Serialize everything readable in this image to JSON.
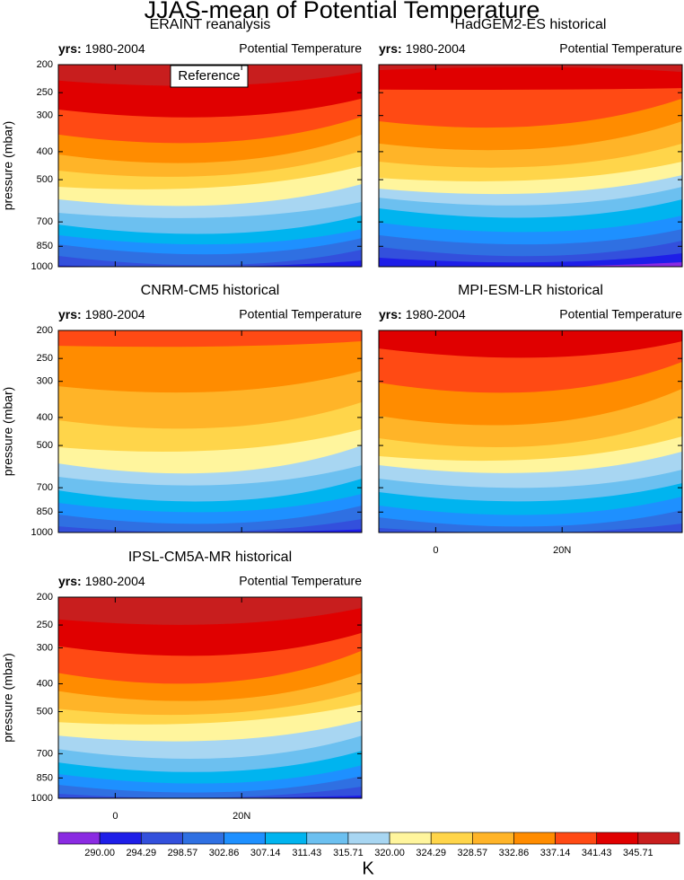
{
  "title": "JJAS-mean of Potential Temperature",
  "colorbar": {
    "label": "K",
    "levels": [
      {
        "value": 290,
        "label": "290.00"
      },
      294.29,
      298.57,
      302.86,
      307.14,
      311.43,
      315.71,
      {
        "value": 320,
        "label": "320.00"
      },
      324.29,
      328.57,
      332.86,
      337.14,
      341.43,
      345.71
    ],
    "colors": [
      "#8a2be2",
      "#1e1ee8",
      "#3350dc",
      "#2f70e2",
      "#1e90ff",
      "#00b4ef",
      "#6cc0f0",
      "#a8d6f2",
      "#fff59d",
      "#ffd54a",
      "#ffb428",
      "#ff8c00",
      "#ff4a14",
      "#e00000",
      "#c81e1e"
    ]
  },
  "chart_data": [
    {
      "type": "contour",
      "title": "ERAINT reanalysis",
      "left_string_bold": "yrs:",
      "left_string": "1980-2004",
      "right_string": "Potential Temperature",
      "annotation": "Reference",
      "ylabel": "pressure (mbar)",
      "log_y": true,
      "ytick_labels": true,
      "xtick_labels": false,
      "x": [
        -9,
        17,
        39
      ],
      "xlim": [
        -9,
        39
      ],
      "ylim": [
        1000,
        200
      ],
      "xticks": [
        0,
        {
          "value": 20,
          "label": "20N"
        }
      ],
      "yticks": [
        200,
        250,
        300,
        400,
        500,
        700,
        850,
        1000
      ],
      "contours": [
        {
          "level": 345.71,
          "values": [
            227,
            236,
            212
          ]
        },
        {
          "level": 341.43,
          "values": [
            286,
            303,
            262
          ]
        },
        {
          "level": 337.14,
          "values": [
            349,
            370,
            303
          ]
        },
        {
          "level": 332.86,
          "values": [
            409,
            433,
            349
          ]
        },
        {
          "level": 328.57,
          "values": [
            465,
            482,
            397
          ]
        },
        {
          "level": 324.29,
          "values": [
            529,
            529,
            449
          ]
        },
        {
          "level": 320,
          "values": [
            585,
            611,
            518
          ]
        },
        {
          "level": 315.71,
          "values": [
            651,
            675,
            597
          ]
        },
        {
          "level": 311.43,
          "values": [
            715,
            768,
            665
          ]
        },
        {
          "level": 307.14,
          "values": [
            778,
            836,
            741
          ]
        },
        {
          "level": 302.86,
          "values": [
            836,
            905,
            796
          ]
        },
        {
          "level": 298.57,
          "values": [
            918,
            986,
            873
          ]
        },
        {
          "level": 294.29,
          "values": [
            990,
            1000,
            952
          ]
        }
      ]
    },
    {
      "type": "contour",
      "title": "HadGEM2-ES historical",
      "left_string_bold": "yrs:",
      "left_string": "1980-2004",
      "right_string": "Potential Temperature",
      "log_y": true,
      "ytick_labels": false,
      "xtick_labels": false,
      "x": [
        -9,
        17,
        39
      ],
      "xlim": [
        -9,
        39
      ],
      "ylim": [
        1000,
        200
      ],
      "xticks": [
        0,
        {
          "value": 20,
          "label": "20N"
        }
      ],
      "yticks": [
        200,
        250,
        300,
        400,
        500,
        700,
        850,
        1000
      ],
      "contours": [
        {
          "level": 345.71,
          "values": [
            209,
            204,
            212
          ]
        },
        {
          "level": 341.43,
          "values": [
            244,
            244,
            241
          ]
        },
        {
          "level": 337.14,
          "values": [
            314,
            325,
            262
          ]
        },
        {
          "level": 332.86,
          "values": [
            375,
            389,
            314
          ]
        },
        {
          "level": 328.57,
          "values": [
            433,
            449,
            375
          ]
        },
        {
          "level": 324.29,
          "values": [
            493,
            500,
            433
          ]
        },
        {
          "level": 320,
          "values": [
            537,
            556,
            482
          ]
        },
        {
          "level": 315.71,
          "values": [
            577,
            611,
            529
          ]
        },
        {
          "level": 311.43,
          "values": [
            628,
            675,
            585
          ]
        },
        {
          "level": 307.14,
          "values": [
            704,
            757,
            665
          ]
        },
        {
          "level": 302.86,
          "values": [
            778,
            836,
            741
          ]
        },
        {
          "level": 298.57,
          "values": [
            854,
            918,
            813
          ]
        },
        {
          "level": 294.29,
          "values": [
            931,
            965,
            898
          ]
        },
        {
          "level": 290,
          "values": [
            1000,
            1000,
            965
          ]
        }
      ]
    },
    {
      "type": "contour",
      "title": "CNRM-CM5 historical",
      "left_string_bold": "yrs:",
      "left_string": "1980-2004",
      "right_string": "Potential Temperature",
      "ylabel": "pressure (mbar)",
      "log_y": true,
      "ytick_labels": true,
      "xtick_labels": false,
      "x": [
        -9,
        17,
        39
      ],
      "xlim": [
        -9,
        39
      ],
      "ylim": [
        1000,
        200
      ],
      "xticks": [
        0,
        {
          "value": 20,
          "label": "20N"
        }
      ],
      "yticks": [
        200,
        250,
        300,
        400,
        500,
        700,
        850,
        1000
      ],
      "contours": [
        {
          "level": 337.14,
          "values": [
            226,
            227,
            218
          ]
        },
        {
          "level": 332.86,
          "values": [
            312,
            325,
            276
          ]
        },
        {
          "level": 328.57,
          "values": [
            409,
            433,
            354
          ]
        },
        {
          "level": 324.29,
          "values": [
            507,
            518,
            439
          ]
        },
        {
          "level": 320,
          "values": [
            577,
            619,
            500
          ]
        },
        {
          "level": 315.71,
          "values": [
            642,
            684,
            585
          ]
        },
        {
          "level": 311.43,
          "values": [
            715,
            778,
            651
          ]
        },
        {
          "level": 307.14,
          "values": [
            790,
            848,
            735
          ]
        },
        {
          "level": 302.86,
          "values": [
            867,
            931,
            807
          ]
        },
        {
          "level": 298.57,
          "values": [
            952,
            993,
            898
          ]
        },
        {
          "level": 294.29,
          "values": [
            1000,
            1000,
            975
          ]
        }
      ]
    },
    {
      "type": "contour",
      "title": "MPI-ESM-LR historical",
      "left_string_bold": "yrs:",
      "left_string": "1980-2004",
      "right_string": "Potential Temperature",
      "log_y": true,
      "ytick_labels": false,
      "xtick_labels": true,
      "x": [
        -9,
        17,
        39
      ],
      "xlim": [
        -9,
        39
      ],
      "ylim": [
        1000,
        200
      ],
      "xticks": [
        0,
        {
          "value": 20,
          "label": "20N"
        }
      ],
      "yticks": [
        200,
        250,
        300,
        400,
        500,
        700,
        850,
        1000
      ],
      "contours": [
        {
          "level": 341.43,
          "values": [
            231,
            248,
            218
          ]
        },
        {
          "level": 337.14,
          "values": [
            303,
            325,
            257
          ]
        },
        {
          "level": 332.86,
          "values": [
            395,
            418,
            318
          ]
        },
        {
          "level": 328.57,
          "values": [
            472,
            500,
            395
          ]
        },
        {
          "level": 324.29,
          "values": [
            544,
            556,
            465
          ]
        },
        {
          "level": 320,
          "values": [
            585,
            619,
            525
          ]
        },
        {
          "level": 315.71,
          "values": [
            651,
            699,
            606
          ]
        },
        {
          "level": 311.43,
          "values": [
            725,
            778,
            675
          ]
        },
        {
          "level": 307.14,
          "values": [
            807,
            867,
            751
          ]
        },
        {
          "level": 302.86,
          "values": [
            886,
            952,
            836
          ]
        },
        {
          "level": 298.57,
          "values": [
            965,
            1000,
            931
          ]
        }
      ]
    },
    {
      "type": "contour",
      "title": "IPSL-CM5A-MR historical",
      "left_string_bold": "yrs:",
      "left_string": "1980-2004",
      "right_string": "Potential Temperature",
      "ylabel": "pressure (mbar)",
      "log_y": true,
      "ytick_labels": true,
      "xtick_labels": true,
      "x": [
        -9,
        17,
        39
      ],
      "xlim": [
        -9,
        39
      ],
      "ylim": [
        1000,
        200
      ],
      "xticks": [
        0,
        {
          "value": 20,
          "label": "20N"
        }
      ],
      "yticks": [
        200,
        250,
        300,
        400,
        500,
        700,
        850,
        1000
      ],
      "contours": [
        {
          "level": 345.71,
          "values": [
            239,
            248,
            218
          ]
        },
        {
          "level": 341.43,
          "values": [
            296,
            318,
            266
          ]
        },
        {
          "level": 337.14,
          "values": [
            367,
            395,
            307
          ]
        },
        {
          "level": 332.86,
          "values": [
            424,
            455,
            367
          ]
        },
        {
          "level": 328.57,
          "values": [
            489,
            507,
            424
          ]
        },
        {
          "level": 324.29,
          "values": [
            544,
            544,
            472
          ]
        },
        {
          "level": 320,
          "values": [
            606,
            628,
            537
          ]
        },
        {
          "level": 315.71,
          "values": [
            675,
            725,
            606
          ]
        },
        {
          "level": 311.43,
          "values": [
            751,
            807,
            684
          ]
        },
        {
          "level": 307.14,
          "values": [
            824,
            886,
            768
          ]
        },
        {
          "level": 302.86,
          "values": [
            898,
            952,
            836
          ]
        },
        {
          "level": 298.57,
          "values": [
            965,
            993,
            911
          ]
        },
        {
          "level": 294.29,
          "values": [
            1000,
            1000,
            978
          ]
        }
      ]
    }
  ]
}
